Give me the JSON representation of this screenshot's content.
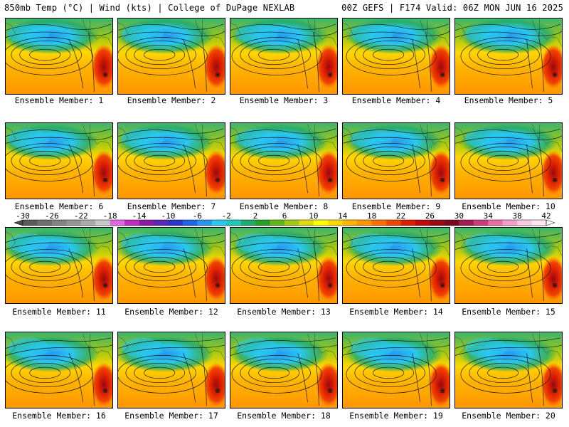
{
  "header": {
    "left": "850mb Temp (°C) | Wind (kts) | College of DuPage NEXLAB",
    "right": "00Z GEFS | F174 Valid: 06Z MON JUN 16 2025"
  },
  "members": [
    {
      "label": "Ensemble Member: 1"
    },
    {
      "label": "Ensemble Member: 2"
    },
    {
      "label": "Ensemble Member: 3"
    },
    {
      "label": "Ensemble Member: 4"
    },
    {
      "label": "Ensemble Member: 5"
    },
    {
      "label": "Ensemble Member: 6"
    },
    {
      "label": "Ensemble Member: 7"
    },
    {
      "label": "Ensemble Member: 8"
    },
    {
      "label": "Ensemble Member: 9"
    },
    {
      "label": "Ensemble Member: 10"
    },
    {
      "label": "Ensemble Member: 11"
    },
    {
      "label": "Ensemble Member: 12"
    },
    {
      "label": "Ensemble Member: 13"
    },
    {
      "label": "Ensemble Member: 14"
    },
    {
      "label": "Ensemble Member: 15"
    },
    {
      "label": "Ensemble Member: 16"
    },
    {
      "label": "Ensemble Member: 17"
    },
    {
      "label": "Ensemble Member: 18"
    },
    {
      "label": "Ensemble Member: 19"
    },
    {
      "label": "Ensemble Member: 20"
    }
  ],
  "colorbar": {
    "ticks": [
      "-30",
      "-26",
      "-22",
      "-18",
      "-14",
      "-10",
      "-6",
      "-2",
      "2",
      "6",
      "10",
      "14",
      "18",
      "22",
      "26",
      "30",
      "34",
      "38",
      "42"
    ],
    "colors": [
      "#5a5a5a",
      "#6e6e6e",
      "#828282",
      "#969696",
      "#aaaaaa",
      "#c8c8c8",
      "#e066e0",
      "#c02cc0",
      "#8a1ca0",
      "#5a28b4",
      "#2a36c8",
      "#1e64e6",
      "#2896f0",
      "#28c8f0",
      "#1ec8b4",
      "#1eaa6e",
      "#28a028",
      "#64b41e",
      "#a0c814",
      "#dcdc0a",
      "#ffff00",
      "#ffd700",
      "#ffb400",
      "#ff9600",
      "#ff6e00",
      "#f04600",
      "#dc1e00",
      "#be0a0a",
      "#960a14",
      "#780a1e",
      "#a01e50",
      "#c83c78",
      "#e66ea0",
      "#f0a0c8",
      "#f8c8e0",
      "#ffe6f0"
    ]
  }
}
